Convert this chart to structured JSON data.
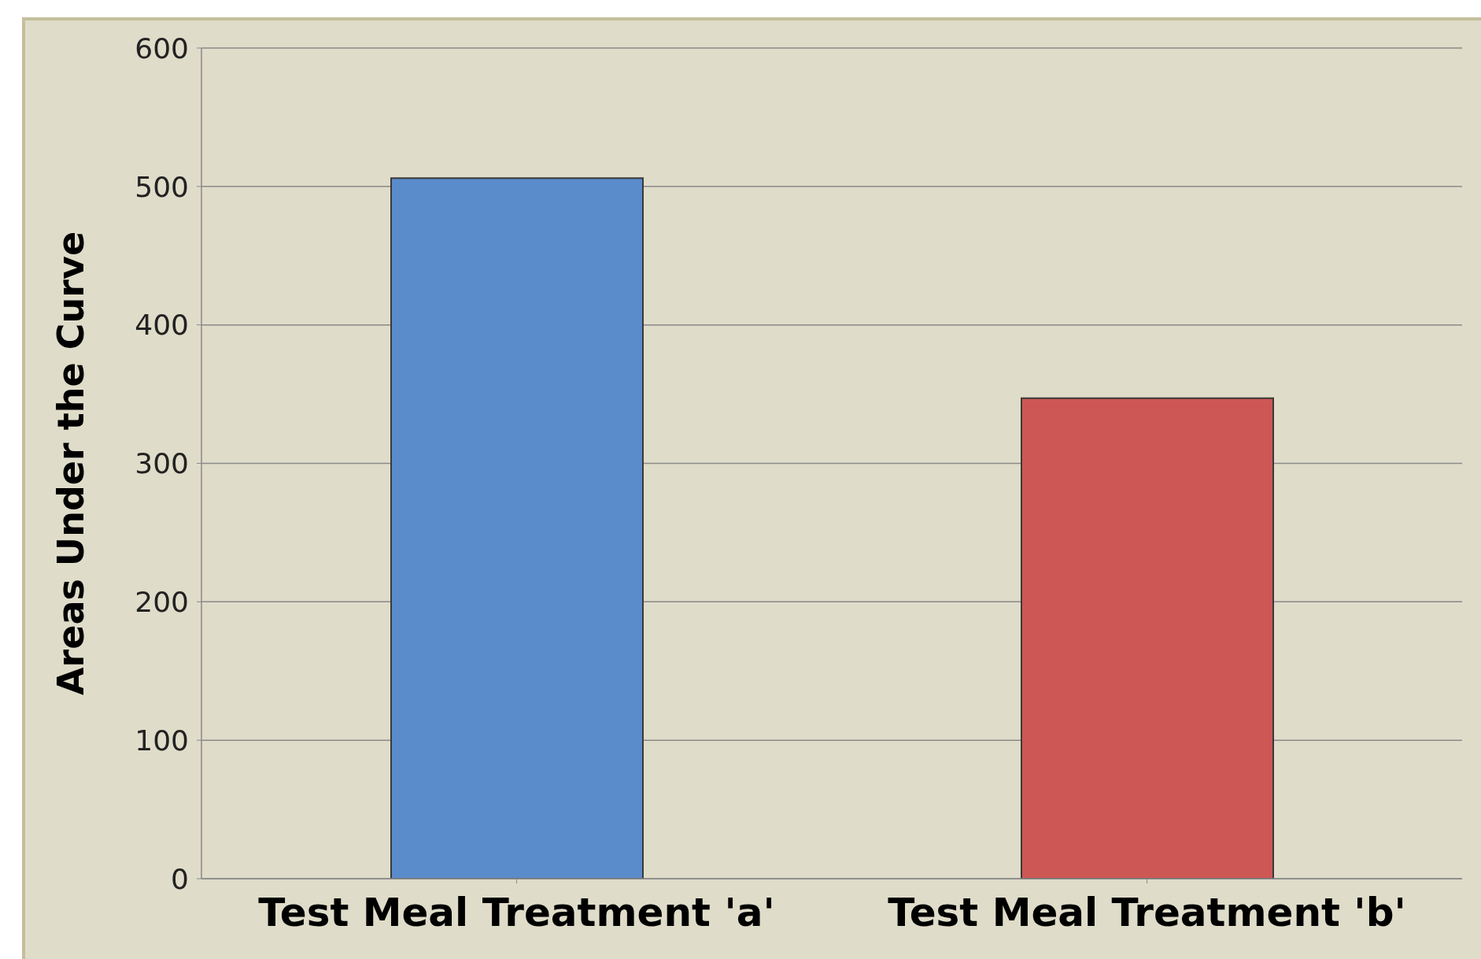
{
  "chart_data": {
    "type": "bar",
    "ylabel": "Areas Under the Curve",
    "categories": [
      "Test Meal Treatment 'a'",
      "Test Meal Treatment 'b'"
    ],
    "values": [
      506,
      347
    ],
    "colors": [
      "#5a8bcb",
      "#cd5755"
    ],
    "ylim": [
      0,
      600
    ],
    "yticks": [
      0,
      100,
      200,
      300,
      400,
      500,
      600
    ],
    "grid": "y"
  }
}
